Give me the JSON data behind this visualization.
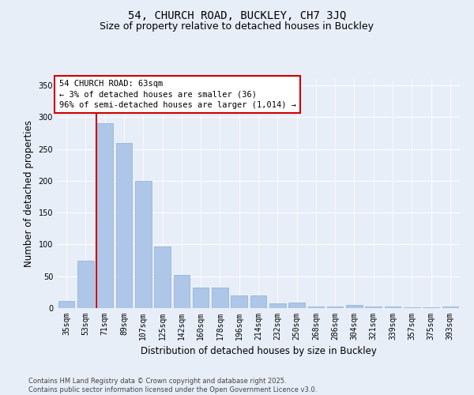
{
  "title": "54, CHURCH ROAD, BUCKLEY, CH7 3JQ",
  "subtitle": "Size of property relative to detached houses in Buckley",
  "xlabel": "Distribution of detached houses by size in Buckley",
  "ylabel": "Number of detached properties",
  "annotation_line1": "54 CHURCH ROAD: 63sqm",
  "annotation_line2": "← 3% of detached houses are smaller (36)",
  "annotation_line3": "96% of semi-detached houses are larger (1,014) →",
  "footer_line1": "Contains HM Land Registry data © Crown copyright and database right 2025.",
  "footer_line2": "Contains public sector information licensed under the Open Government Licence v3.0.",
  "categories": [
    "35sqm",
    "53sqm",
    "71sqm",
    "89sqm",
    "107sqm",
    "125sqm",
    "142sqm",
    "160sqm",
    "178sqm",
    "196sqm",
    "214sqm",
    "232sqm",
    "250sqm",
    "268sqm",
    "286sqm",
    "304sqm",
    "321sqm",
    "339sqm",
    "357sqm",
    "375sqm",
    "393sqm"
  ],
  "values": [
    11,
    75,
    290,
    260,
    200,
    97,
    52,
    32,
    32,
    20,
    20,
    8,
    9,
    3,
    3,
    5,
    3,
    2,
    1,
    1,
    2
  ],
  "bar_color": "#aec6e8",
  "bar_edge_color": "#8ab0d0",
  "red_line_color": "#cc0000",
  "annotation_box_color": "#ffffff",
  "annotation_box_edge": "#cc0000",
  "bg_color": "#e8eef8",
  "plot_bg_color": "#e8eef8",
  "ylim": [
    0,
    360
  ],
  "yticks": [
    0,
    50,
    100,
    150,
    200,
    250,
    300,
    350
  ],
  "title_fontsize": 10,
  "subtitle_fontsize": 9,
  "axis_label_fontsize": 8.5,
  "tick_fontsize": 7,
  "annotation_fontsize": 7.5,
  "footer_fontsize": 6
}
